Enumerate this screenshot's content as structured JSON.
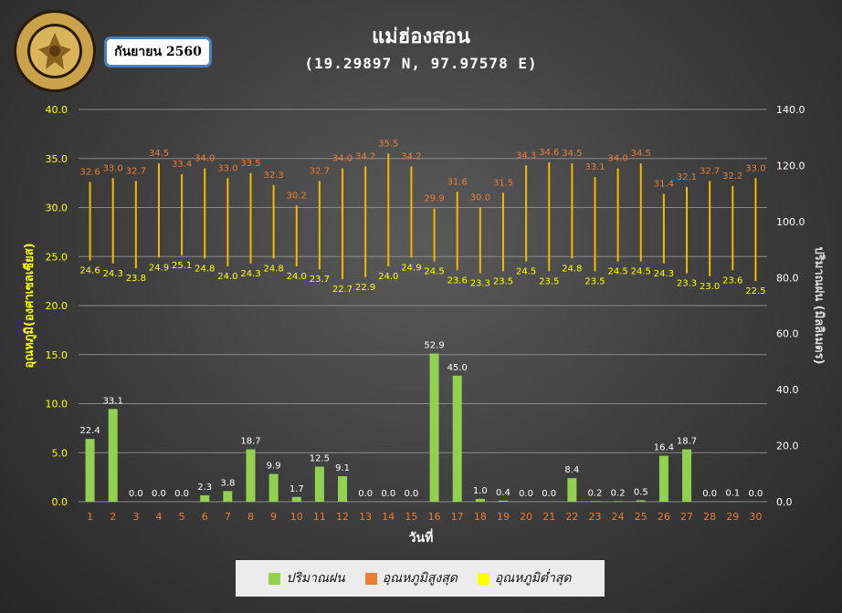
{
  "header": {
    "title": "แม่ฮ่องสอน",
    "coords": "(19.29897 N, 97.97578 E)",
    "month_label": "กันยายน 2560"
  },
  "legend": {
    "items": [
      {
        "label": "ปริมาณฝน",
        "color": "#92d050"
      },
      {
        "label": "อุณหภูมิสูงสุด",
        "color": "#ed7d31"
      },
      {
        "label": "อุณหภูมิต่ำสุด",
        "color": "#ffff00"
      }
    ]
  },
  "chart_data": {
    "type": "bar",
    "xlabel": "วันที่",
    "ylabel_left": "อุณหภูมิ(องศาเซลเซียส)",
    "ylabel_right": "ปริมาณฝน (มิลลิเมตร)",
    "ylim_left": [
      0,
      40
    ],
    "ylim_right": [
      0,
      140
    ],
    "left_ticks": [
      "0.0",
      "5.0",
      "10.0",
      "15.0",
      "20.0",
      "25.0",
      "30.0",
      "35.0",
      "40.0"
    ],
    "right_ticks": [
      "0.0",
      "20.0",
      "40.0",
      "60.0",
      "80.0",
      "100.0",
      "120.0",
      "140.0"
    ],
    "categories": [
      "1",
      "2",
      "3",
      "4",
      "5",
      "6",
      "7",
      "8",
      "9",
      "10",
      "11",
      "12",
      "13",
      "14",
      "15",
      "16",
      "17",
      "18",
      "19",
      "20",
      "21",
      "22",
      "23",
      "24",
      "25",
      "26",
      "27",
      "28",
      "29",
      "30"
    ],
    "series": [
      {
        "name": "ปริมาณฝน",
        "axis": "right",
        "color": "#92d050",
        "values": [
          22.4,
          33.1,
          0.0,
          0.0,
          0.0,
          2.3,
          3.8,
          18.7,
          9.9,
          1.7,
          12.5,
          9.1,
          0.0,
          0.0,
          0.0,
          52.9,
          45.0,
          1.0,
          0.4,
          0.0,
          0.0,
          8.4,
          0.2,
          0.2,
          0.5,
          16.4,
          18.7,
          0.0,
          0.1,
          0.0
        ]
      },
      {
        "name": "อุณหภูมิสูงสุด",
        "axis": "left",
        "color": "#ed7d31",
        "values": [
          32.6,
          33.0,
          32.7,
          34.5,
          33.4,
          34.0,
          33.0,
          33.5,
          32.3,
          30.2,
          32.7,
          34.0,
          34.2,
          35.5,
          34.2,
          29.9,
          31.6,
          30.0,
          31.5,
          34.3,
          34.6,
          34.5,
          33.1,
          34.0,
          34.5,
          31.4,
          32.1,
          32.7,
          32.2,
          33.0
        ]
      },
      {
        "name": "อุณหภูมิต่ำสุด",
        "axis": "left",
        "color": "#ffff00",
        "values": [
          24.6,
          24.3,
          23.8,
          24.9,
          25.1,
          24.8,
          24.0,
          24.3,
          24.8,
          24.0,
          23.7,
          22.7,
          22.9,
          24.0,
          24.9,
          24.5,
          23.6,
          23.3,
          23.5,
          24.5,
          23.5,
          24.8,
          23.5,
          24.5,
          24.5,
          24.3,
          23.3,
          23.0,
          23.6,
          22.5
        ]
      }
    ]
  }
}
